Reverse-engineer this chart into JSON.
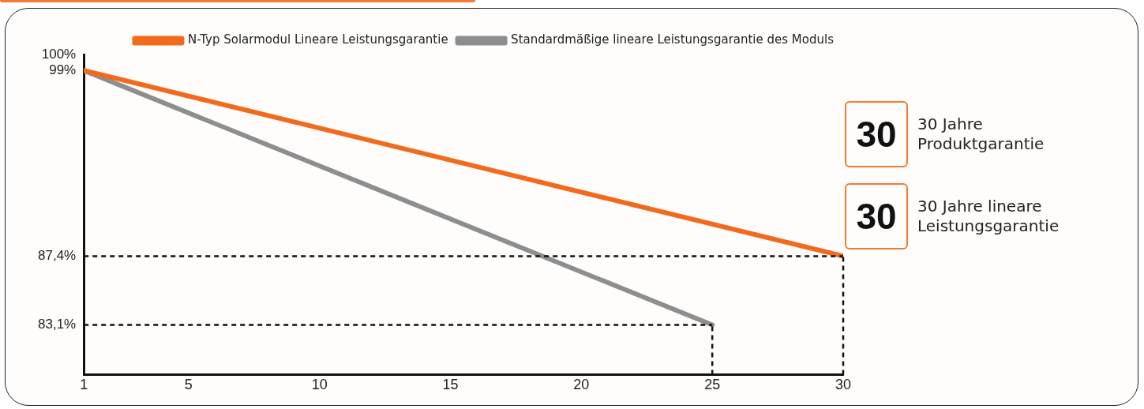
{
  "chart_data": {
    "type": "line",
    "series": [
      {
        "name": "N-Typ Solarmodul Lineare Leistungsgarantie",
        "color": "#f26b1d",
        "x": [
          1,
          30
        ],
        "values": [
          99,
          87.4
        ]
      },
      {
        "name": "Standardmäßige lineare Leistungsgarantie des Moduls",
        "color": "#8e8e8e",
        "x": [
          1,
          25
        ],
        "values": [
          99,
          83.1
        ]
      }
    ],
    "xlim": [
      1,
      30
    ],
    "xticks": [
      1,
      5,
      10,
      15,
      20,
      25,
      30
    ],
    "ylim": [
      80,
      100
    ],
    "yticks": [
      {
        "value": 100,
        "label": "100%"
      },
      {
        "value": 99,
        "label": "99%"
      },
      {
        "value": 87.4,
        "label": "87,4%"
      },
      {
        "value": 83.1,
        "label": "83,1%"
      }
    ],
    "grid": false,
    "legend": "top right",
    "marker": "none",
    "line_style": "solid",
    "ref_lines": [
      {
        "axis": "y",
        "value": 87.4,
        "color": "#111111",
        "line_style": "dashed"
      },
      {
        "axis": "y",
        "value": 83.1,
        "color": "#111111",
        "line_style": "dashed"
      },
      {
        "axis": "x",
        "value": 25,
        "color": "#111111",
        "line_style": "dashed"
      },
      {
        "axis": "x",
        "value": 30,
        "color": "#111111",
        "line_style": "dashed"
      }
    ],
    "annotations": [
      "30",
      "30 Jahre Produktgarantie",
      "30",
      "30 Jahre lineare Leistungsgarantie"
    ]
  }
}
